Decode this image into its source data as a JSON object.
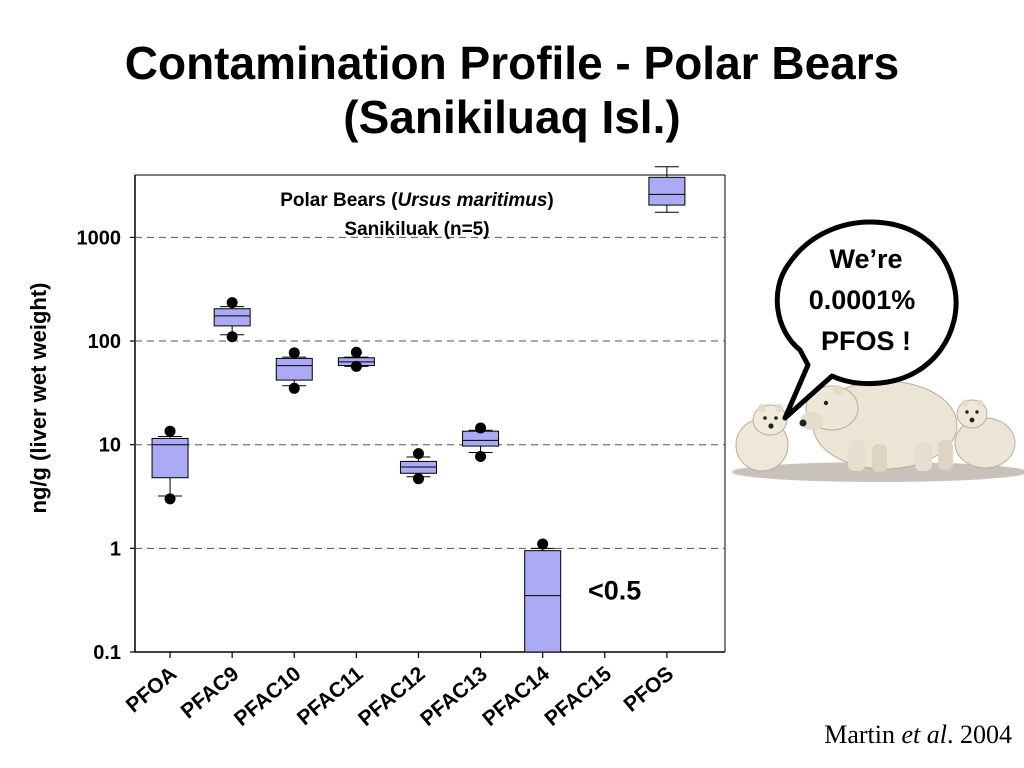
{
  "page": {
    "title_line1": "Contamination Profile - Polar Bears",
    "title_line2": "(Sanikiluaq Isl.)",
    "citation_author": "Martin ",
    "citation_etal": "et al",
    "citation_year": ". 2004"
  },
  "callout": {
    "line1": "We’re",
    "line2": "0.0001%",
    "line3": "PFOS !"
  },
  "chart_data": {
    "type": "box",
    "title": "",
    "inner_label_line1_prefix": "Polar Bears (",
    "inner_label_line1_species": "Ursus maritimus",
    "inner_label_line1_suffix": ")",
    "inner_label_line2": "Sanikiluak (n=5)",
    "ylabel": "ng/g (liver wet weight)",
    "xlabel": "",
    "yscale": "log",
    "ylim": [
      0.1,
      4000
    ],
    "yticks": [
      0.1,
      1,
      10,
      100,
      1000
    ],
    "ytick_labels": [
      "0.1",
      "1",
      "10",
      "100",
      "1000"
    ],
    "grid": "dashed horizontal at 1, 10, 100, 1000",
    "box_color": "#aaaaf5",
    "categories": [
      "PFOA",
      "PFAC9",
      "PFAC10",
      "PFAC11",
      "PFAC12",
      "PFAC13",
      "PFAC14",
      "PFAC15",
      "PFOS"
    ],
    "boxes": [
      {
        "category": "PFOA",
        "q1": 4.8,
        "median": 10,
        "q3": 11.5,
        "whisker_low": 3.2,
        "whisker_high": 12,
        "outliers": [
          13.5,
          3.0
        ]
      },
      {
        "category": "PFAC9",
        "q1": 140,
        "median": 175,
        "q3": 205,
        "whisker_low": 115,
        "whisker_high": 215,
        "outliers": [
          235,
          110
        ]
      },
      {
        "category": "PFAC10",
        "q1": 42,
        "median": 58,
        "q3": 68,
        "whisker_low": 37,
        "whisker_high": 70,
        "outliers": [
          77,
          35
        ]
      },
      {
        "category": "PFAC11",
        "q1": 58,
        "median": 63,
        "q3": 69,
        "whisker_low": 57,
        "whisker_high": 70,
        "outliers": [
          78,
          57
        ]
      },
      {
        "category": "PFAC12",
        "q1": 5.3,
        "median": 6.1,
        "q3": 6.9,
        "whisker_low": 4.9,
        "whisker_high": 7.6,
        "outliers": [
          8.2,
          4.7
        ]
      },
      {
        "category": "PFAC13",
        "q1": 9.7,
        "median": 11,
        "q3": 13.5,
        "whisker_low": 8.4,
        "whisker_high": 13.8,
        "outliers": [
          14.5,
          7.7
        ]
      },
      {
        "category": "PFAC14",
        "q1": 0.1,
        "median": 0.35,
        "q3": 0.95,
        "whisker_low": 0.1,
        "whisker_high": 1.0,
        "outliers": [
          1.1
        ]
      },
      {
        "category": "PFAC15",
        "q1": null,
        "median": null,
        "q3": null,
        "whisker_low": null,
        "whisker_high": null,
        "outliers": []
      },
      {
        "category": "PFOS",
        "q1": 2050,
        "median": 2600,
        "q3": 3800,
        "whisker_low": 1750,
        "whisker_high": 4800,
        "outliers": []
      }
    ],
    "annotations": [
      {
        "text": "<0.5",
        "category": "PFAC14",
        "y": 0.35
      }
    ]
  },
  "image": {
    "subject": "polar-bears-photo"
  }
}
